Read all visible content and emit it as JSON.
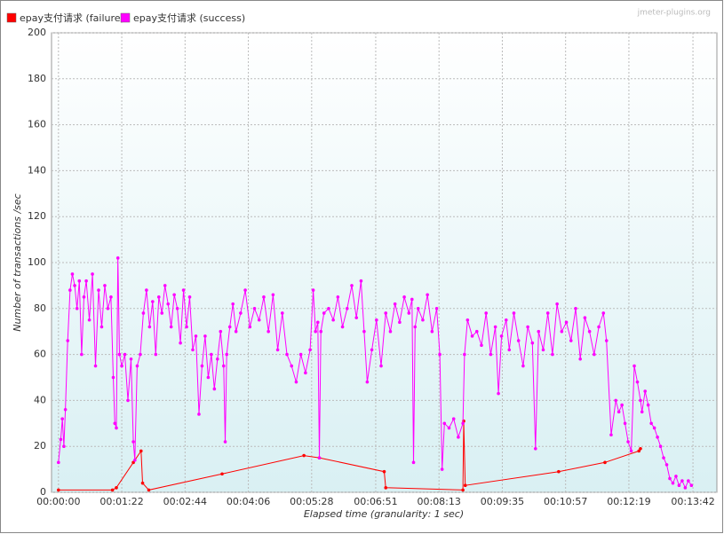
{
  "chart_data": {
    "type": "line",
    "watermark": "jmeter-plugins.org",
    "xlabel": "Elapsed time (granularity: 1 sec)",
    "ylabel": "Number of transactions /sec",
    "xlim": [
      -9,
      853
    ],
    "ylim": [
      0,
      200
    ],
    "xticks": [
      {
        "value": 0,
        "label": "00:00:00"
      },
      {
        "value": 82,
        "label": "00:01:22"
      },
      {
        "value": 164,
        "label": "00:02:44"
      },
      {
        "value": 246,
        "label": "00:04:06"
      },
      {
        "value": 328,
        "label": "00:05:28"
      },
      {
        "value": 411,
        "label": "00:06:51"
      },
      {
        "value": 493,
        "label": "00:08:13"
      },
      {
        "value": 575,
        "label": "00:09:35"
      },
      {
        "value": 657,
        "label": "00:10:57"
      },
      {
        "value": 739,
        "label": "00:12:19"
      },
      {
        "value": 822,
        "label": "00:13:42"
      }
    ],
    "yticks": [
      0,
      20,
      40,
      60,
      80,
      100,
      120,
      140,
      160,
      180,
      200
    ],
    "grid": true,
    "legend": "top-left",
    "series": [
      {
        "name": "epay支付请求 (failure)",
        "color": "#ff0000",
        "x": [
          0,
          70,
          75,
          97,
          107,
          109,
          117,
          212,
          318,
          338,
          422,
          424,
          524,
          525,
          527,
          648,
          708,
          752,
          754
        ],
        "values": [
          1,
          1,
          2,
          13,
          18,
          4,
          1,
          8,
          16,
          15,
          9,
          2,
          1,
          31,
          3,
          9,
          13,
          18,
          19
        ]
      },
      {
        "name": "epay支付请求 (success)",
        "color": "#ff00ff",
        "x": [
          0,
          3,
          5,
          7,
          9,
          12,
          15,
          18,
          21,
          24,
          27,
          30,
          33,
          36,
          40,
          44,
          48,
          52,
          56,
          60,
          64,
          68,
          71,
          73,
          75,
          77,
          79,
          82,
          86,
          90,
          94,
          97,
          99,
          102,
          106,
          110,
          114,
          118,
          122,
          126,
          130,
          134,
          138,
          142,
          146,
          150,
          154,
          158,
          162,
          166,
          170,
          174,
          178,
          182,
          186,
          190,
          194,
          198,
          202,
          206,
          210,
          214,
          216,
          218,
          222,
          226,
          230,
          236,
          242,
          248,
          254,
          260,
          266,
          272,
          278,
          284,
          290,
          296,
          302,
          308,
          314,
          320,
          326,
          330,
          333,
          336,
          338,
          340,
          344,
          350,
          356,
          362,
          368,
          374,
          380,
          386,
          392,
          396,
          400,
          406,
          412,
          418,
          424,
          430,
          436,
          442,
          448,
          454,
          458,
          460,
          462,
          466,
          472,
          478,
          484,
          490,
          494,
          497,
          500,
          506,
          512,
          518,
          524,
          526,
          530,
          536,
          542,
          548,
          554,
          560,
          566,
          570,
          574,
          580,
          584,
          590,
          596,
          602,
          608,
          614,
          618,
          622,
          628,
          634,
          640,
          646,
          652,
          658,
          664,
          670,
          676,
          682,
          688,
          694,
          700,
          706,
          710,
          716,
          722,
          726,
          730,
          734,
          738,
          742,
          746,
          750,
          754,
          756,
          760,
          764,
          768,
          772,
          776,
          780,
          784,
          788,
          792,
          796,
          800,
          804,
          808,
          812,
          816,
          820
        ],
        "values": [
          13,
          23,
          32,
          20,
          36,
          66,
          88,
          95,
          90,
          80,
          92,
          60,
          85,
          92,
          75,
          95,
          55,
          88,
          72,
          90,
          80,
          85,
          50,
          30,
          28,
          102,
          60,
          55,
          60,
          40,
          58,
          22,
          14,
          55,
          60,
          78,
          88,
          72,
          83,
          60,
          85,
          78,
          90,
          82,
          72,
          86,
          80,
          65,
          88,
          72,
          85,
          62,
          68,
          34,
          55,
          68,
          50,
          60,
          45,
          58,
          70,
          55,
          22,
          60,
          72,
          82,
          70,
          78,
          88,
          72,
          80,
          75,
          85,
          70,
          86,
          62,
          78,
          60,
          55,
          48,
          60,
          52,
          62,
          88,
          70,
          74,
          15,
          70,
          78,
          80,
          75,
          85,
          72,
          80,
          90,
          76,
          92,
          70,
          48,
          62,
          75,
          55,
          78,
          70,
          82,
          74,
          85,
          78,
          84,
          13,
          72,
          80,
          75,
          86,
          70,
          80,
          60,
          10,
          30,
          28,
          32,
          24,
          30,
          60,
          75,
          68,
          70,
          64,
          78,
          60,
          72,
          43,
          68,
          75,
          62,
          78,
          66,
          55,
          72,
          65,
          19,
          70,
          62,
          78,
          60,
          82,
          70,
          74,
          66,
          80,
          58,
          76,
          70,
          60,
          72,
          78,
          66,
          25,
          40,
          35,
          38,
          30,
          22,
          18,
          55,
          48,
          40,
          35,
          44,
          38,
          30,
          28,
          24,
          20,
          15,
          12,
          6,
          4,
          7,
          3,
          5,
          2,
          5,
          3
        ]
      }
    ]
  }
}
